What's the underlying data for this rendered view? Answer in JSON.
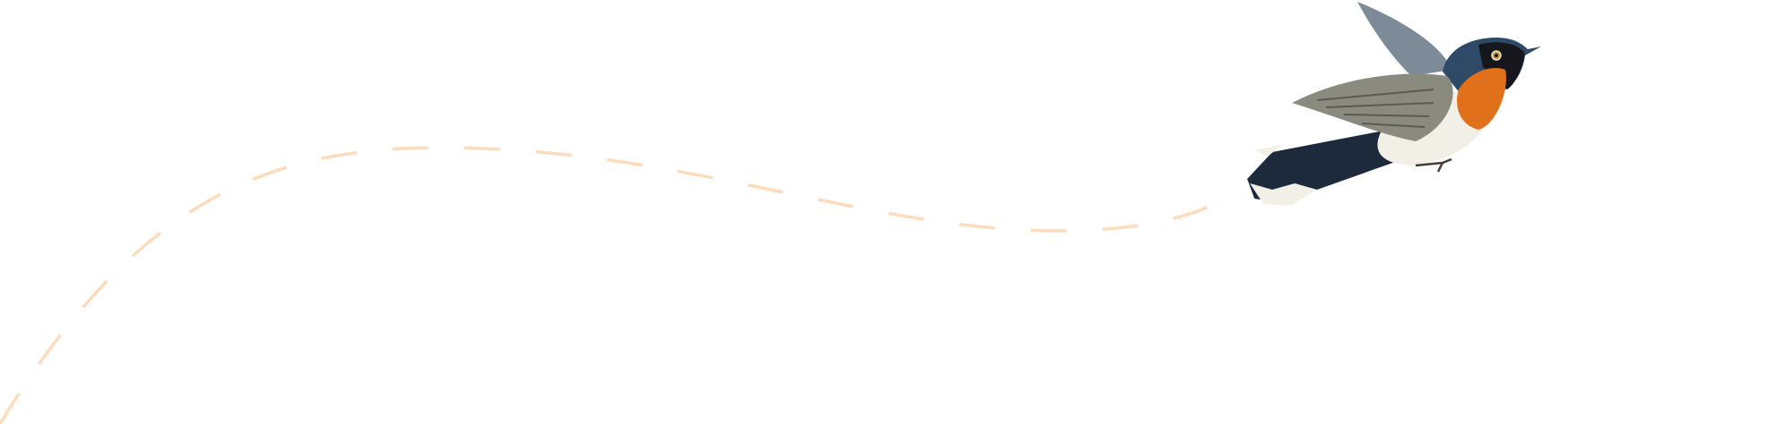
{
  "illustration": {
    "subject": "bird-in-flight",
    "colors": {
      "flight_path": "#fcdcbc",
      "bird_head": "#2e4a66",
      "bird_throat": "#e0701a",
      "bird_wing": "#8a8a7e",
      "bird_belly": "#f2efe6",
      "bird_tail": "#1c2a3c"
    }
  }
}
